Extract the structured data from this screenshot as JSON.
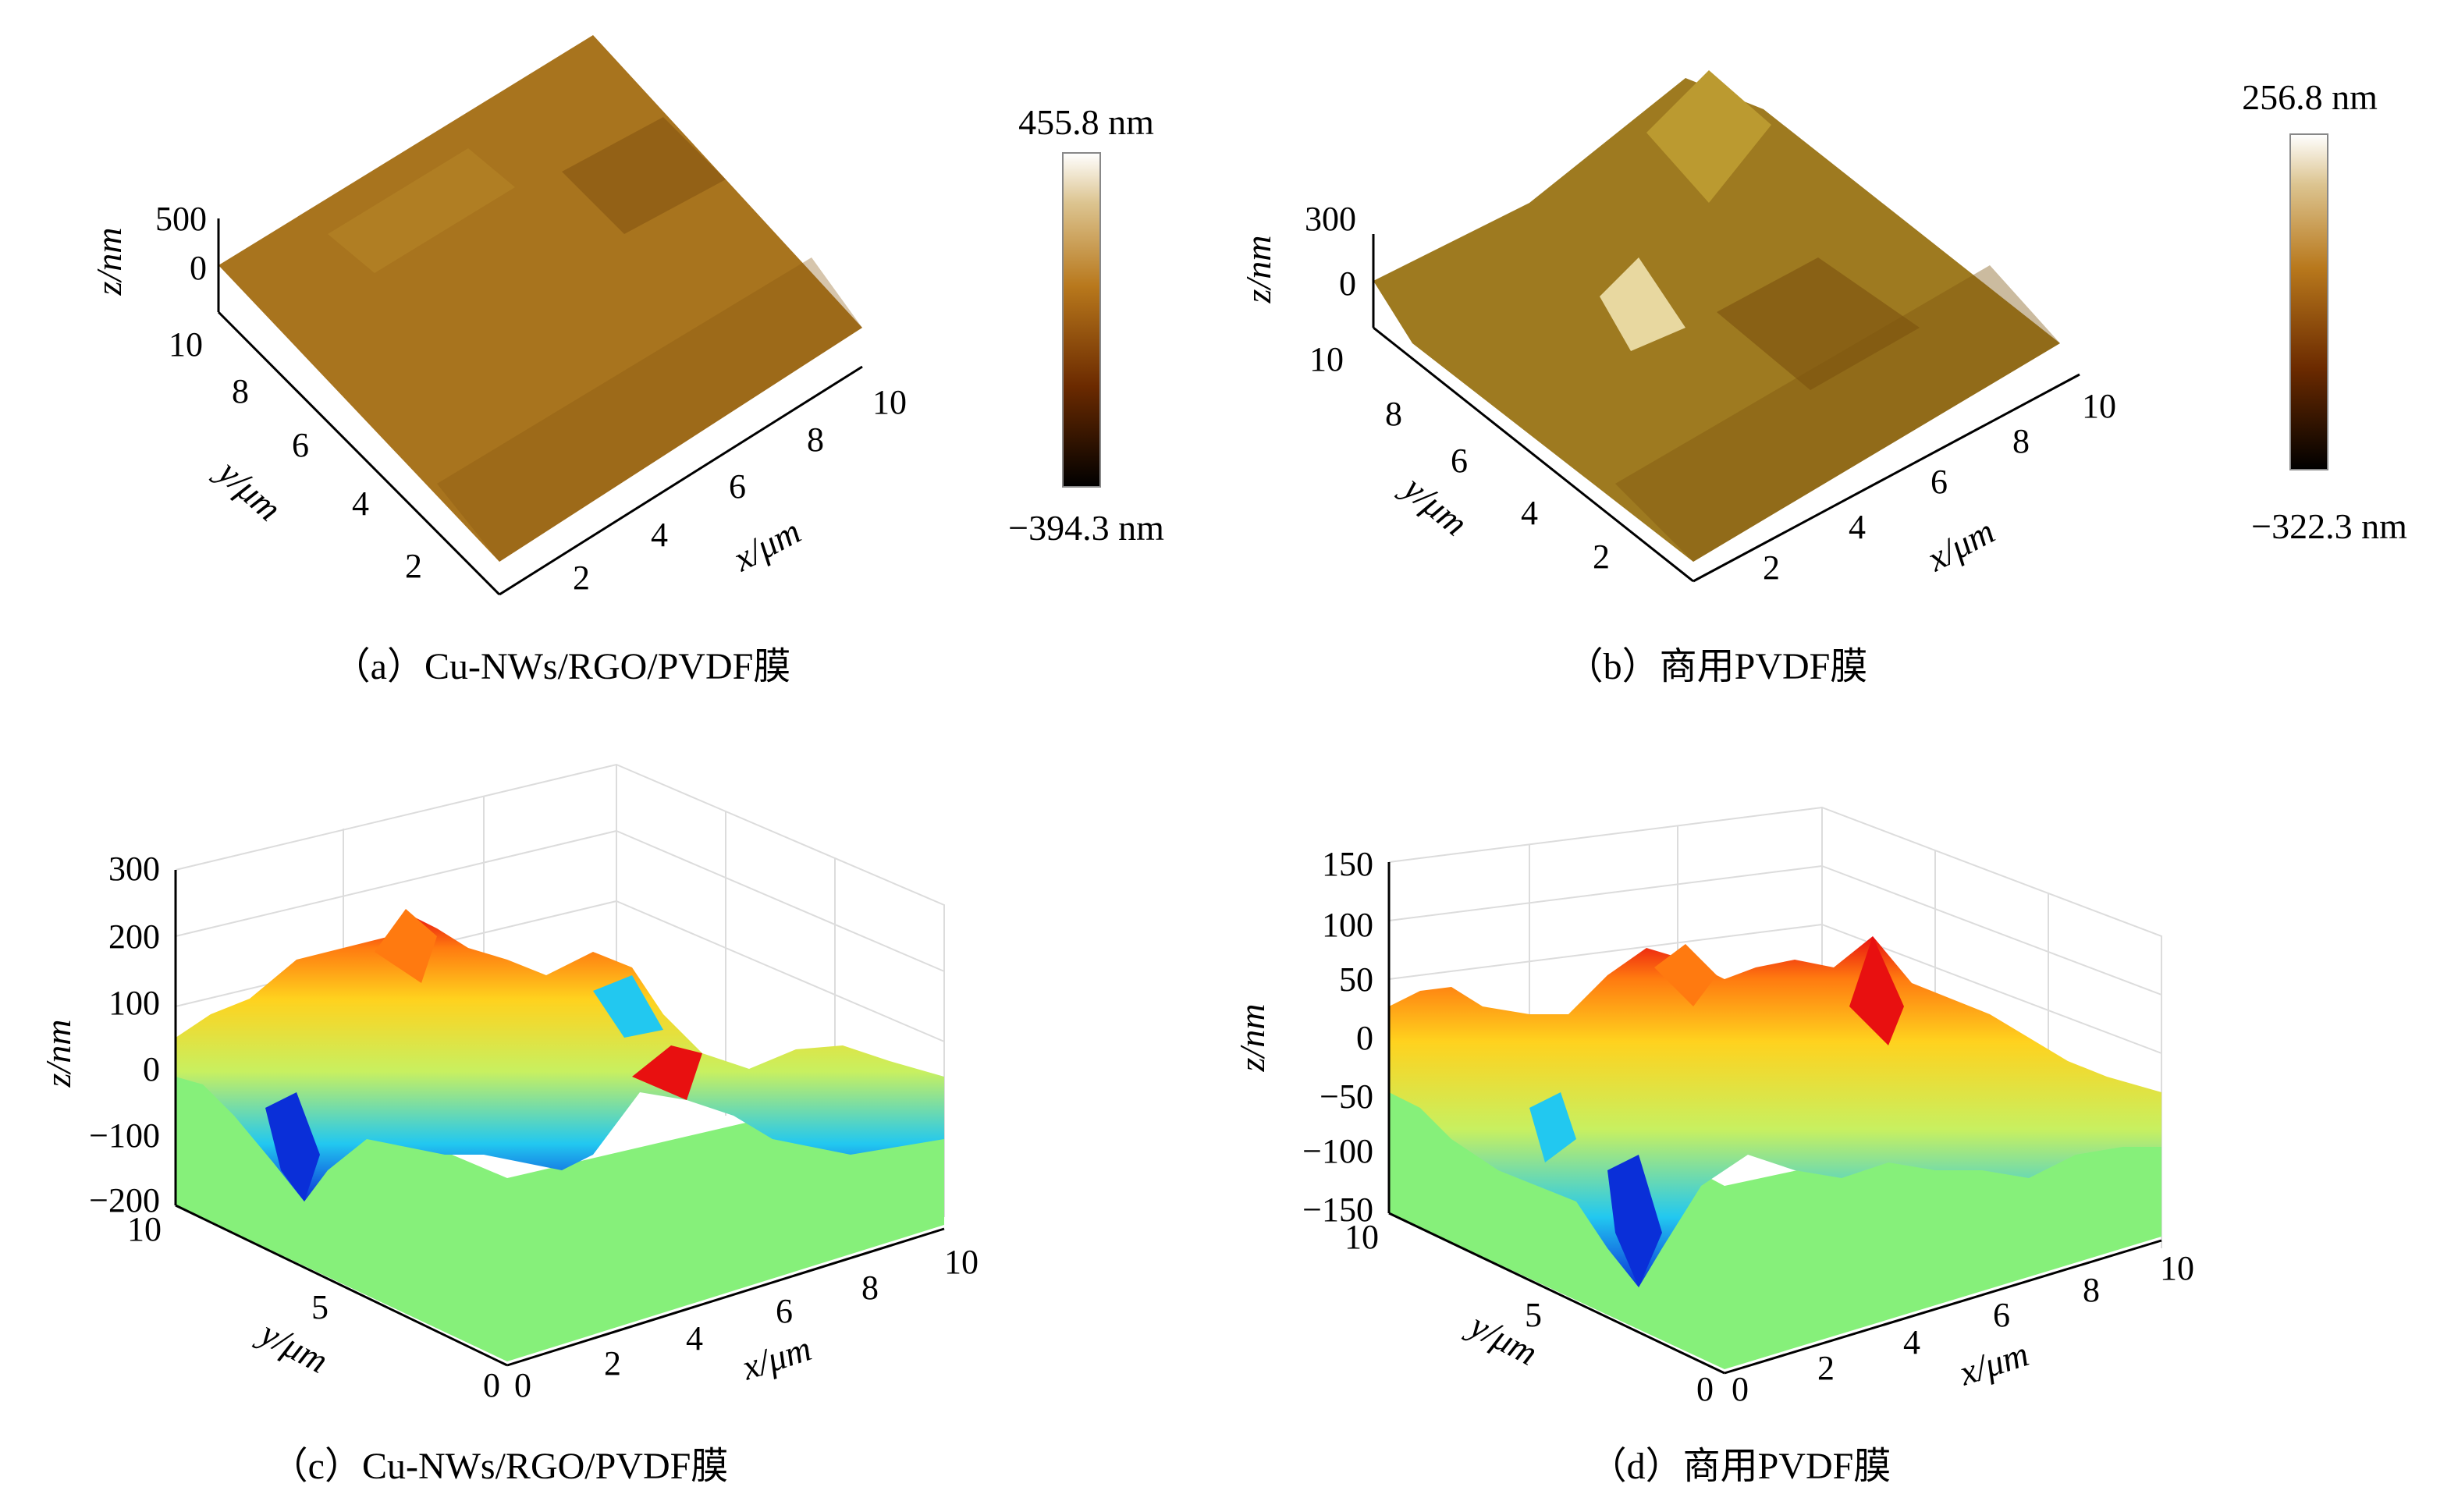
{
  "chart_data": [
    {
      "panel": "a",
      "type": "surface3d",
      "caption": "（a）Cu-NWs/RGO/PVDF膜",
      "xlabel": "x/μm",
      "ylabel": "y/μm",
      "zlabel": "z/nm",
      "xticks": [
        "2",
        "4",
        "6",
        "8",
        "10"
      ],
      "yticks": [
        "2",
        "4",
        "6",
        "8",
        "10"
      ],
      "zticks": [
        "0",
        "500"
      ],
      "colorbar": {
        "max_label": "455.8 nm",
        "min_label": "−394.3 nm",
        "colormap": "afmhot",
        "colors": [
          "#000000",
          "#6b2a00",
          "#b8781c",
          "#dcc490",
          "#ffffff"
        ]
      },
      "surface_color": "#a8741e"
    },
    {
      "panel": "b",
      "type": "surface3d",
      "caption": "（b）商用PVDF膜",
      "xlabel": "x/μm",
      "ylabel": "y/μm",
      "zlabel": "z/nm",
      "xticks": [
        "2",
        "4",
        "6",
        "8",
        "10"
      ],
      "yticks": [
        "2",
        "4",
        "6",
        "8",
        "10"
      ],
      "zticks": [
        "0",
        "300"
      ],
      "colorbar": {
        "max_label": "256.8 nm",
        "min_label": "−322.3 nm",
        "colormap": "afmhot",
        "colors": [
          "#000000",
          "#6b2a00",
          "#b8781c",
          "#dcc490",
          "#ffffff"
        ]
      },
      "surface_color": "#9e7a20"
    },
    {
      "panel": "c",
      "type": "surface3d",
      "caption": "（c）Cu-NWs/RGO/PVDF膜",
      "xlabel": "x/μm",
      "ylabel": "y/μm",
      "zlabel": "z/nm",
      "xticks": [
        "0",
        "2",
        "4",
        "6",
        "8",
        "10"
      ],
      "yticks": [
        "0",
        "5",
        "10"
      ],
      "zticks": [
        "−200",
        "−100",
        "0",
        "100",
        "200",
        "300"
      ],
      "zlim": [
        -200,
        300
      ],
      "colormap": "jet",
      "base_color": "#86f07a"
    },
    {
      "panel": "d",
      "type": "surface3d",
      "caption": "（d）商用PVDF膜",
      "xlabel": "x/μm",
      "ylabel": "y/μm",
      "zlabel": "z/nm",
      "xticks": [
        "0",
        "2",
        "4",
        "6",
        "8",
        "10"
      ],
      "yticks": [
        "0",
        "5",
        "10"
      ],
      "zticks": [
        "−150",
        "−100",
        "−50",
        "0",
        "50",
        "100",
        "150"
      ],
      "zlim": [
        -150,
        150
      ],
      "colormap": "jet",
      "base_color": "#86f07a"
    }
  ]
}
